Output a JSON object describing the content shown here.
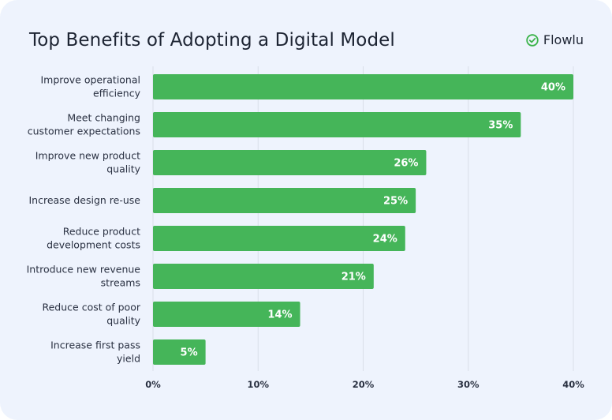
{
  "header": {
    "brand_name": "Flowlu",
    "brand_icon": "check-circle-icon"
  },
  "colors": {
    "background": "#eef3fd",
    "bar": "#45b559",
    "grid": "#d9dfe9",
    "brand_accent": "#3bb34a"
  },
  "chart_data": {
    "type": "bar",
    "orientation": "horizontal",
    "title": "Top Benefits of Adopting a Digital Model",
    "categories": [
      [
        "Improve operational",
        "efficiency"
      ],
      [
        "Meet changing",
        "customer expectations"
      ],
      [
        "Improve new product",
        "quality"
      ],
      [
        "Increase design re-use"
      ],
      [
        "Reduce product",
        "development costs"
      ],
      [
        "Introduce new revenue",
        "streams"
      ],
      [
        "Reduce cost of poor",
        "quality"
      ],
      [
        "Increase first pass",
        "yield"
      ]
    ],
    "values": [
      40,
      35,
      26,
      25,
      24,
      21,
      14,
      5
    ],
    "value_labels": [
      "40%",
      "35%",
      "26%",
      "25%",
      "24%",
      "21%",
      "14%",
      "5%"
    ],
    "xlim": [
      0,
      40
    ],
    "xticks": [
      0,
      10,
      20,
      30,
      40
    ],
    "xtick_labels": [
      "0%",
      "10%",
      "20%",
      "30%",
      "40%"
    ],
    "grid": true
  }
}
